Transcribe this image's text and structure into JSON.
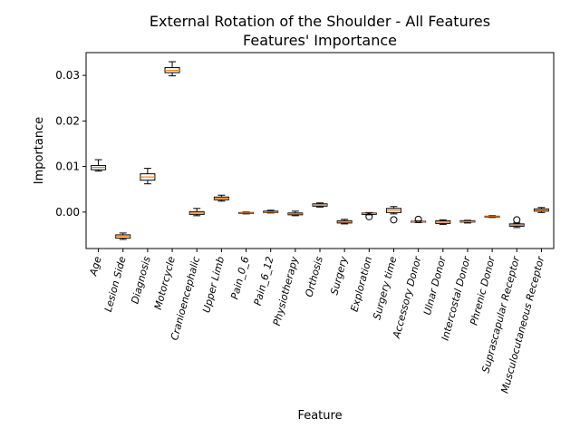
{
  "chart_data": {
    "type": "boxplot",
    "title_line1": "External Rotation of the Shoulder - All Features",
    "title_line2": "Features' Importance",
    "xlabel": "Feature",
    "ylabel": "Importance",
    "ylim": [
      -0.008,
      0.035
    ],
    "yticks": [
      0.0,
      0.01,
      0.02,
      0.03
    ],
    "ytick_labels": [
      "0.00",
      "0.01",
      "0.02",
      "0.03"
    ],
    "categories": [
      "Age",
      "Lesion Side",
      "Diagnosis",
      "Motorcycle",
      "Cranioencephalic",
      "Upper Limb",
      "Pain_0_6",
      "Pain_6_12",
      "Physiotherapy",
      "Orthosis",
      "Surgery",
      "Exploration",
      "Surgery time",
      "Accessory Donor",
      "Ulnar Donor",
      "Intercostal Donor",
      "Phrenic Donor",
      "Suprascapular Receptor",
      "Musculocutaneous Receptor"
    ],
    "boxes": [
      {
        "min": 0.009,
        "q1": 0.0093,
        "median": 0.0098,
        "q3": 0.0102,
        "max": 0.0115,
        "outliers": []
      },
      {
        "min": -0.006,
        "q1": -0.0057,
        "median": -0.0053,
        "q3": -0.005,
        "max": -0.0046,
        "outliers": []
      },
      {
        "min": 0.0062,
        "q1": 0.007,
        "median": 0.0077,
        "q3": 0.0084,
        "max": 0.0096,
        "outliers": []
      },
      {
        "min": 0.0299,
        "q1": 0.0306,
        "median": 0.0311,
        "q3": 0.0317,
        "max": 0.033,
        "outliers": []
      },
      {
        "min": -0.0008,
        "q1": -0.0005,
        "median": -0.0002,
        "q3": 0.0001,
        "max": 0.0008,
        "outliers": []
      },
      {
        "min": 0.0024,
        "q1": 0.0027,
        "median": 0.003,
        "q3": 0.0033,
        "max": 0.0037,
        "outliers": []
      },
      {
        "min": -0.0004,
        "q1": -0.0003,
        "median": -0.0002,
        "q3": -0.0001,
        "max": 0.0,
        "outliers": []
      },
      {
        "min": -0.0002,
        "q1": -0.0001,
        "median": 0.0,
        "q3": 0.0002,
        "max": 0.0004,
        "outliers": []
      },
      {
        "min": -0.0008,
        "q1": -0.0006,
        "median": -0.0004,
        "q3": -0.0002,
        "max": 0.0002,
        "outliers": []
      },
      {
        "min": 0.0011,
        "q1": 0.0013,
        "median": 0.0015,
        "q3": 0.0018,
        "max": 0.002,
        "outliers": []
      },
      {
        "min": -0.0026,
        "q1": -0.0024,
        "median": -0.0022,
        "q3": -0.0019,
        "max": -0.0016,
        "outliers": []
      },
      {
        "min": -0.0006,
        "q1": -0.0005,
        "median": -0.0003,
        "q3": -0.0002,
        "max": -0.0001,
        "outliers": [
          -0.001
        ]
      },
      {
        "min": -0.0004,
        "q1": -0.0001,
        "median": 0.0004,
        "q3": 0.0008,
        "max": 0.0012,
        "outliers": [
          -0.0017
        ]
      },
      {
        "min": -0.0023,
        "q1": -0.0022,
        "median": -0.0021,
        "q3": -0.002,
        "max": -0.0019,
        "outliers": [
          -0.0016
        ]
      },
      {
        "min": -0.0027,
        "q1": -0.0025,
        "median": -0.0022,
        "q3": -0.0019,
        "max": -0.0017,
        "outliers": []
      },
      {
        "min": -0.0024,
        "q1": -0.0022,
        "median": -0.0021,
        "q3": -0.0019,
        "max": -0.0018,
        "outliers": []
      },
      {
        "min": -0.0012,
        "q1": -0.0011,
        "median": -0.001,
        "q3": -0.0009,
        "max": -0.0008,
        "outliers": []
      },
      {
        "min": -0.0034,
        "q1": -0.0031,
        "median": -0.0029,
        "q3": -0.0026,
        "max": -0.0024,
        "outliers": [
          -0.0017
        ]
      },
      {
        "min": -0.0001,
        "q1": 0.0002,
        "median": 0.0004,
        "q3": 0.0007,
        "max": 0.001,
        "outliers": []
      }
    ],
    "colors": {
      "box": "#000000",
      "median": "#ff7f0e",
      "axis": "#000000",
      "background": "#ffffff"
    }
  }
}
